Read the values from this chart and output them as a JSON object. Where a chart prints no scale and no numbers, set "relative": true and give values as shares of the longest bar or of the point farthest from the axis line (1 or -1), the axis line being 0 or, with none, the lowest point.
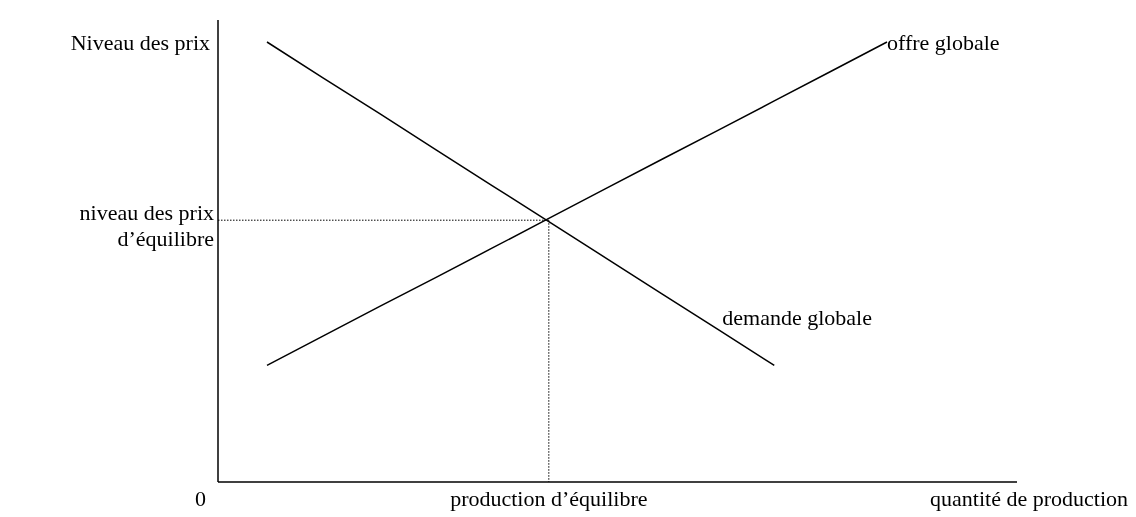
{
  "chart_data": {
    "type": "line",
    "relative": true,
    "xlabel": "quantité de production",
    "ylabel": "Niveau des prix",
    "categories": [
      null,
      null,
      null,
      null,
      null,
      null,
      null,
      null,
      null,
      null,
      null,
      null
    ],
    "series": [
      {
        "name": "demande globale",
        "color": "#000000",
        "values": [
          1,
          0.918,
          0.837,
          0.755,
          0.673,
          0.592,
          0.51,
          0.428,
          0.347,
          0.265,
          null,
          null
        ]
      },
      {
        "name": "offre globale",
        "color": "#000000",
        "values": [
          0.265,
          0.332,
          0.399,
          0.465,
          0.532,
          0.599,
          0.666,
          0.733,
          0.799,
          0.866,
          0.933,
          1
        ]
      }
    ],
    "ref_lines": [
      {
        "axis": "y",
        "value": 0.595,
        "label": "niveau des prix d’équilibre",
        "line_style": "dotted"
      }
    ],
    "annotations": [
      "0",
      "production d’équilibre"
    ]
  }
}
